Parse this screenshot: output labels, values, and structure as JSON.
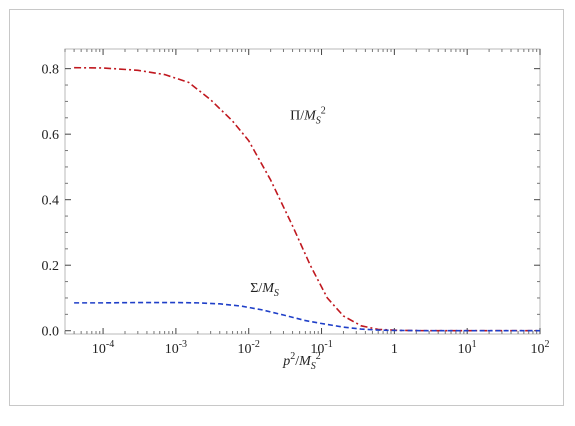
{
  "chart_data": {
    "type": "line",
    "xscale": "log",
    "xlabel": {
      "base": "p",
      "base_sup": "2",
      "slash": "/",
      "unit": "M",
      "unit_sub": "S",
      "unit_sup": "2"
    },
    "ylabel": "",
    "xlim": [
      3e-05,
      100
    ],
    "ylim": [
      -0.01,
      0.86
    ],
    "x_ticks": [
      {
        "value": 0.0001,
        "base": "10",
        "exp": "-4"
      },
      {
        "value": 0.001,
        "base": "10",
        "exp": "-3"
      },
      {
        "value": 0.01,
        "base": "10",
        "exp": "-2"
      },
      {
        "value": 0.1,
        "base": "10",
        "exp": "-1"
      },
      {
        "value": 1,
        "base": "1",
        "exp": ""
      },
      {
        "value": 10,
        "base": "10",
        "exp": "1"
      },
      {
        "value": 100,
        "base": "10",
        "exp": "2"
      }
    ],
    "y_ticks": [
      {
        "value": 0.0,
        "label": "0.0"
      },
      {
        "value": 0.2,
        "label": "0.2"
      },
      {
        "value": 0.4,
        "label": "0.4"
      },
      {
        "value": 0.6,
        "label": "0.6"
      },
      {
        "value": 0.8,
        "label": "0.8"
      }
    ],
    "series": [
      {
        "label": {
          "sym": "Π",
          "slash": "/",
          "unit": "M",
          "unit_sub": "S",
          "unit_sup": "2"
        },
        "color": "#c0181f",
        "dash": "7,3,2,3",
        "label_at": {
          "x": 0.065,
          "y": 0.645
        },
        "points": [
          [
            4e-05,
            0.803
          ],
          [
            0.0001,
            0.802
          ],
          [
            0.0003,
            0.795
          ],
          [
            0.0007,
            0.782
          ],
          [
            0.0015,
            0.758
          ],
          [
            0.003,
            0.705
          ],
          [
            0.006,
            0.64
          ],
          [
            0.01,
            0.58
          ],
          [
            0.02,
            0.46
          ],
          [
            0.04,
            0.32
          ],
          [
            0.07,
            0.2
          ],
          [
            0.12,
            0.1
          ],
          [
            0.2,
            0.045
          ],
          [
            0.35,
            0.015
          ],
          [
            0.6,
            0.004
          ],
          [
            1.2,
            0.001
          ],
          [
            3,
            0.0
          ],
          [
            10,
            0.0
          ],
          [
            100,
            0.0
          ]
        ]
      },
      {
        "label": {
          "sym": "Σ",
          "slash": "/",
          "unit": "M",
          "unit_sub": "S",
          "unit_sup": ""
        },
        "color": "#1f3fc8",
        "dash": "5,3",
        "label_at": {
          "x": 0.0165,
          "y": 0.118
        },
        "points": [
          [
            4e-05,
            0.085
          ],
          [
            0.0001,
            0.085
          ],
          [
            0.0003,
            0.086
          ],
          [
            0.001,
            0.086
          ],
          [
            0.002,
            0.085
          ],
          [
            0.004,
            0.082
          ],
          [
            0.008,
            0.075
          ],
          [
            0.015,
            0.064
          ],
          [
            0.03,
            0.048
          ],
          [
            0.06,
            0.031
          ],
          [
            0.1,
            0.022
          ],
          [
            0.2,
            0.011
          ],
          [
            0.35,
            0.005
          ],
          [
            0.6,
            0.002
          ],
          [
            1,
            0.001
          ],
          [
            3,
            0.0
          ],
          [
            10,
            0.0
          ],
          [
            100,
            0.0
          ]
        ]
      }
    ],
    "grid": false,
    "legend": "none"
  }
}
